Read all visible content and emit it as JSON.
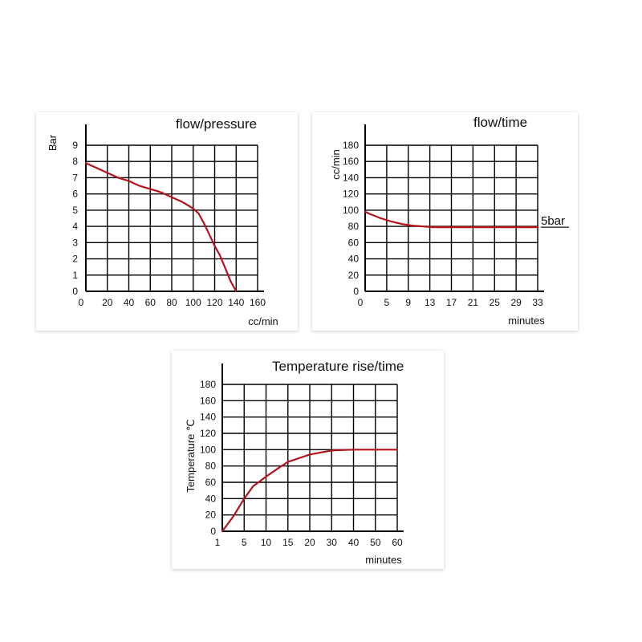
{
  "colors": {
    "curve": "#b5121b",
    "grid": "#000000",
    "background": "#ffffff"
  },
  "chart_data": [
    {
      "type": "line",
      "title": "flow/pressure",
      "xlabel": "cc/min",
      "ylabel": "Bar",
      "x_ticks": [
        "0",
        "20",
        "40",
        "60",
        "80",
        "100",
        "120",
        "140",
        "160"
      ],
      "y_ticks": [
        "0",
        "1",
        "2",
        "3",
        "4",
        "5",
        "6",
        "7",
        "8",
        "9"
      ],
      "xlim": [
        0,
        160
      ],
      "ylim": [
        0,
        9
      ],
      "grid": true,
      "series": [
        {
          "x": [
            0,
            10,
            20,
            30,
            40,
            50,
            60,
            70,
            80,
            90,
            100,
            105,
            110,
            115,
            120,
            125,
            130,
            135,
            140
          ],
          "y": [
            7.9,
            7.6,
            7.3,
            7.0,
            6.8,
            6.5,
            6.3,
            6.1,
            5.8,
            5.5,
            5.1,
            4.8,
            4.2,
            3.5,
            2.8,
            2.2,
            1.4,
            0.6,
            0
          ]
        }
      ]
    },
    {
      "type": "line",
      "title": "flow/time",
      "xlabel": "minutes",
      "ylabel": "cc/min",
      "x_ticks": [
        "0",
        "5",
        "9",
        "13",
        "17",
        "21",
        "25",
        "29",
        "33"
      ],
      "y_ticks": [
        "0",
        "20",
        "40",
        "60",
        "80",
        "100",
        "120",
        "140",
        "160",
        "180"
      ],
      "xlim": [
        0,
        33
      ],
      "ylim": [
        0,
        180
      ],
      "grid": true,
      "annotation": "5bar",
      "series": [
        {
          "x": [
            0,
            1,
            3,
            5,
            7,
            9,
            11,
            13,
            17,
            21,
            25,
            29,
            33
          ],
          "y": [
            98,
            95,
            90,
            86,
            83,
            81,
            80,
            79,
            79,
            79,
            79,
            79,
            79
          ]
        }
      ]
    },
    {
      "type": "line",
      "title": "Temperature rise/time",
      "xlabel": "minutes",
      "ylabel": "Temperature ℃",
      "x_ticks": [
        "1",
        "5",
        "10",
        "15",
        "20",
        "30",
        "40",
        "50",
        "60"
      ],
      "y_ticks": [
        "0",
        "20",
        "40",
        "60",
        "80",
        "100",
        "120",
        "140",
        "160",
        "180"
      ],
      "xlim": [
        "1",
        "60"
      ],
      "ylim": [
        0,
        180
      ],
      "grid": true,
      "series": [
        {
          "x": [
            "1",
            "3",
            "5",
            "7",
            "10",
            "13",
            "15",
            "20",
            "30",
            "40",
            "50",
            "60"
          ],
          "y": [
            0,
            18,
            40,
            55,
            67,
            78,
            85,
            94,
            99,
            100,
            100,
            100
          ]
        }
      ]
    }
  ]
}
